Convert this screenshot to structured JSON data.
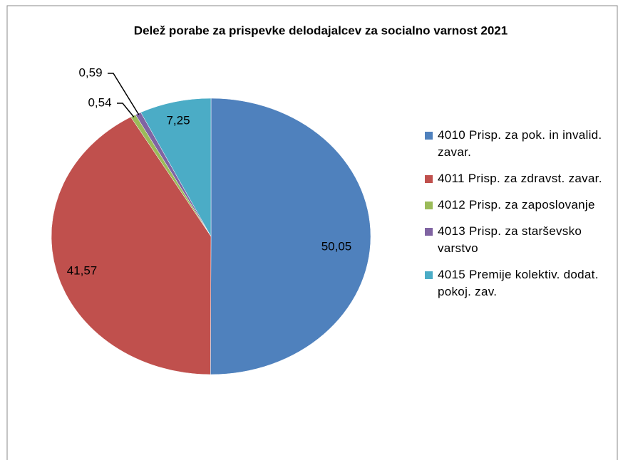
{
  "chart_data": {
    "type": "pie",
    "title": "Delež porabe za prispevke delodajalcev za socialno varnost 2021",
    "categories": [
      "4010 Prisp. za pok. in invalid. zavar.",
      "4011 Prisp. za zdravst. zavar.",
      "4012 Prisp. za zaposlovanje",
      "4013 Prisp. za starševsko varstvo",
      "4015 Premije kolektiv. dodat. pokoj. zav."
    ],
    "values": [
      50.05,
      41.57,
      0.54,
      0.59,
      7.25
    ],
    "value_labels": [
      "50,05",
      "41,57",
      "0,54",
      "0,59",
      "7,25"
    ],
    "colors": [
      "#4f81bd",
      "#c0504d",
      "#9bbb59",
      "#8064a2",
      "#4bacc6"
    ],
    "legend": "right"
  }
}
